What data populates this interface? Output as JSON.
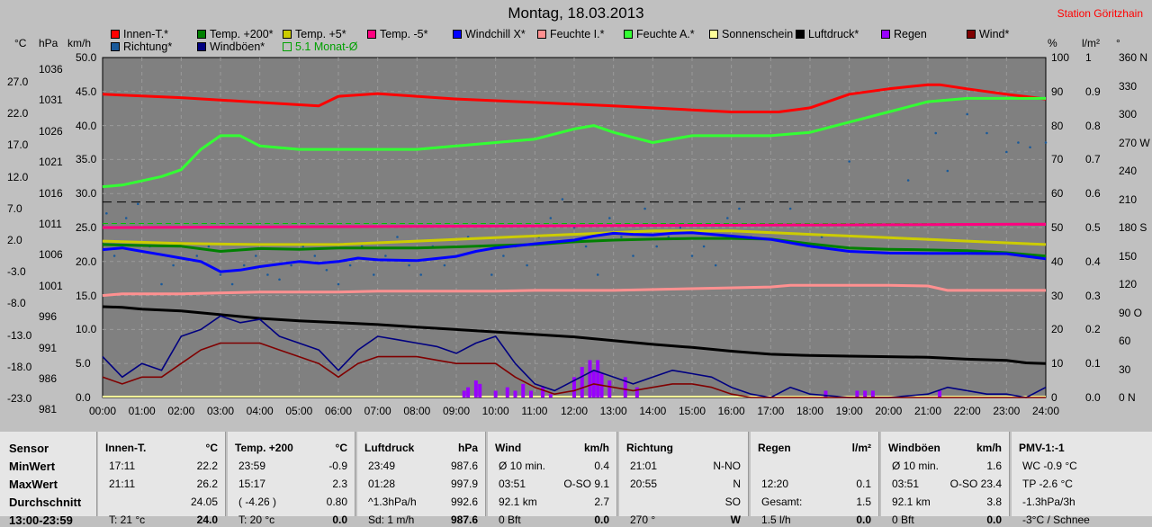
{
  "title": "Montag, 18.03.2013",
  "station": "Station Göritzhain",
  "legend": [
    {
      "label": "Innen-T.*",
      "color": "#ff0000"
    },
    {
      "label": "Temp. +200*",
      "color": "#008000"
    },
    {
      "label": "Temp. +5*",
      "color": "#cccc00"
    },
    {
      "label": "Temp. -5*",
      "color": "#ff0080"
    },
    {
      "label": "Windchill X*",
      "color": "#0000ff"
    },
    {
      "label": "Feuchte I.*",
      "color": "#ff9090"
    },
    {
      "label": "Feuchte A.*",
      "color": "#33ff33"
    },
    {
      "label": "Sonnenschein",
      "color": "#ffff99"
    },
    {
      "label": "Luftdruck*",
      "color": "#000000"
    },
    {
      "label": "Regen",
      "color": "#9900ff"
    },
    {
      "label": "Wind*",
      "color": "#800000"
    },
    {
      "label": "Richtung*",
      "color": "#1a5a9a"
    },
    {
      "label": "Windböen*",
      "color": "#000080"
    },
    {
      "label": "5.1 Monat-Ø",
      "color": "#00c000"
    }
  ],
  "units": {
    "temp": "°C",
    "hpa": "hPa",
    "kmh": "km/h",
    "pct": "%",
    "rain": "l/m²",
    "deg": "°"
  },
  "axes": {
    "temp_ticks": [
      "27.0",
      "22.0",
      "17.0",
      "12.0",
      "7.0",
      "2.0",
      "-3.0",
      "-8.0",
      "-13.0",
      "-18.0",
      "-23.0"
    ],
    "hpa_ticks": [
      "1036",
      "1031",
      "1026",
      "1021",
      "1016",
      "1011",
      "1006",
      "1001",
      "996",
      "991",
      "986",
      "981"
    ],
    "kmh_ticks": [
      "50.0",
      "45.0",
      "40.0",
      "35.0",
      "30.0",
      "25.0",
      "20.0",
      "15.0",
      "10.0",
      "5.0",
      "0.0"
    ],
    "pct_ticks": [
      "100",
      "90",
      "80",
      "70",
      "60",
      "50",
      "40",
      "30",
      "20",
      "10",
      "0"
    ],
    "rain_ticks": [
      "1",
      "0.9",
      "0.8",
      "0.7",
      "0.6",
      "0.5",
      "0.4",
      "0.3",
      "0.2",
      "0.1",
      "0.0"
    ],
    "dir_ticks": [
      "360 N",
      "330",
      "300",
      "270 W",
      "240",
      "210",
      "180 S",
      "150",
      "120",
      "90 O",
      "60",
      "30",
      "0 N"
    ],
    "time_ticks": [
      "00:00",
      "01:00",
      "02:00",
      "03:00",
      "04:00",
      "05:00",
      "06:00",
      "07:00",
      "08:00",
      "09:00",
      "10:00",
      "11:00",
      "12:00",
      "13:00",
      "14:00",
      "15:00",
      "16:00",
      "17:00",
      "18:00",
      "19:00",
      "20:00",
      "21:00",
      "22:00",
      "23:00",
      "24:00"
    ]
  },
  "chart_data": {
    "type": "line",
    "x_unit": "hours",
    "xlim": [
      0,
      24
    ],
    "series": [
      {
        "name": "Innen-T.*",
        "axis": "kmh",
        "color": "#ff0000",
        "x": [
          0,
          2,
          4,
          5.5,
          6,
          7,
          8,
          9,
          11,
          13,
          15,
          16,
          17,
          17.2,
          18,
          19,
          20,
          21,
          21.3,
          22,
          23,
          24
        ],
        "values": [
          44.6,
          44.1,
          43.4,
          42.9,
          44.3,
          44.7,
          44.3,
          43.9,
          43.4,
          42.9,
          42.3,
          42.0,
          42.0,
          42.0,
          42.6,
          44.6,
          45.4,
          46.0,
          46.0,
          45.4,
          44.6,
          43.9
        ]
      },
      {
        "name": "Feuchte A.*",
        "axis": "pct",
        "color": "#33ff33",
        "x": [
          0,
          0.5,
          1.5,
          2,
          2.5,
          3,
          3.5,
          4,
          5,
          6,
          7,
          8,
          9,
          10,
          11,
          12,
          12.5,
          13,
          14,
          15,
          16,
          17,
          18,
          19,
          20,
          21,
          22,
          23,
          24
        ],
        "values": [
          62,
          62.5,
          65,
          67,
          73,
          77,
          77,
          74,
          73,
          73,
          73,
          73,
          74,
          75,
          76,
          79,
          80,
          78,
          75,
          77,
          77,
          77,
          78,
          81,
          84,
          87,
          88,
          88,
          88
        ]
      },
      {
        "name": "Temp. -5*",
        "axis": "kmh",
        "color": "#ff0080",
        "x": [
          0,
          24
        ],
        "values": [
          25.0,
          25.5
        ]
      },
      {
        "name": "Temp. +5*",
        "axis": "pct",
        "color": "#cccc00",
        "x": [
          0,
          2,
          4,
          6,
          8,
          10,
          12,
          14,
          16,
          18,
          20,
          22,
          24
        ],
        "values": [
          46,
          45.3,
          45,
          45,
          46,
          47,
          48,
          49,
          49,
          48,
          47,
          46,
          45
        ]
      },
      {
        "name": "Temp. +200*",
        "axis": "pct",
        "color": "#008000",
        "x": [
          0,
          1,
          2,
          3,
          4,
          5,
          6,
          7,
          8,
          9,
          10,
          11,
          12,
          13,
          14,
          15,
          16,
          17,
          18,
          19,
          20,
          21,
          22,
          23,
          24
        ],
        "values": [
          45,
          44.7,
          44.5,
          43,
          43.8,
          43.6,
          44,
          44,
          44,
          44.3,
          44.7,
          45,
          45.8,
          46.3,
          46.6,
          46.8,
          46.8,
          46.6,
          45.2,
          44,
          43.6,
          43.4,
          43.2,
          42.6,
          41.6
        ]
      },
      {
        "name": "Windchill X*",
        "axis": "pct",
        "color": "#0000ff",
        "x": [
          0,
          0.5,
          1,
          1.5,
          2,
          2.5,
          3,
          3.5,
          4,
          5,
          5.5,
          6,
          6.5,
          7,
          8,
          9,
          9.5,
          10,
          11,
          12,
          12.5,
          13,
          13.5,
          14,
          14.5,
          15,
          15.5,
          16,
          17,
          18,
          19,
          20,
          21,
          22,
          23,
          24
        ],
        "values": [
          43.5,
          44,
          43,
          42,
          41,
          40,
          37,
          37.5,
          38.5,
          40,
          39.5,
          40,
          41,
          40.5,
          40.3,
          41.5,
          43,
          44,
          45.2,
          46.3,
          47.5,
          48.3,
          48,
          47.8,
          48.3,
          48.5,
          48,
          47.5,
          46.5,
          44.5,
          43,
          42.5,
          42.4,
          42.4,
          42.3,
          40.8
        ]
      },
      {
        "name": "Feuchte I.*",
        "axis": "pct",
        "color": "#ff9090",
        "x": [
          0,
          0.5,
          1,
          2,
          4,
          6,
          7,
          8,
          9,
          10,
          11,
          12,
          13,
          15,
          17,
          17.5,
          20,
          21,
          21.5,
          22,
          24
        ],
        "values": [
          30,
          30.5,
          30.5,
          30.5,
          31,
          31,
          31.3,
          31.3,
          31.3,
          31.3,
          31.5,
          31.5,
          31.5,
          32,
          32.5,
          33,
          33,
          32.8,
          31.5,
          31.5,
          31.5
        ]
      },
      {
        "name": "Luftdruck*",
        "axis": "hpa",
        "color": "#000000",
        "x": [
          0,
          0.5,
          1,
          2,
          3,
          4,
          5,
          6,
          7,
          8,
          9,
          10,
          11,
          12,
          13,
          14,
          15,
          16,
          17,
          18,
          19,
          20,
          21,
          22,
          23,
          23.5,
          24
        ],
        "values": [
          995.7,
          995.6,
          995.3,
          995,
          994.4,
          993.8,
          993.4,
          993.1,
          992.8,
          992.4,
          992,
          991.6,
          991.2,
          990.8,
          990.2,
          989.6,
          989.1,
          988.5,
          988,
          987.8,
          987.7,
          987.6,
          987.5,
          987.2,
          987,
          986.6,
          986.5
        ]
      },
      {
        "name": "Windböen*",
        "axis": "kmh",
        "color": "#000080",
        "x": [
          0,
          0.5,
          1,
          1.5,
          2,
          2.5,
          3,
          3.5,
          4,
          4.5,
          5,
          5.5,
          6,
          6.5,
          7,
          7.5,
          8,
          8.5,
          9,
          9.5,
          10,
          10.5,
          11,
          11.5,
          12,
          12.5,
          13,
          13.5,
          14,
          14.5,
          15,
          15.5,
          16,
          16.5,
          17,
          17.5,
          18,
          19,
          20,
          21,
          21.5,
          22,
          22.5,
          23,
          23.5,
          24
        ],
        "values": [
          6,
          3,
          5,
          4,
          9,
          10,
          12,
          11,
          11.5,
          9,
          8,
          7,
          4,
          7,
          9,
          8.5,
          8,
          7.5,
          6.5,
          8,
          9,
          5,
          2,
          1,
          2.5,
          4,
          3,
          2,
          3,
          4,
          3.5,
          3,
          1.5,
          0.5,
          0,
          1.5,
          0.5,
          0,
          0,
          0.5,
          1.5,
          1,
          0.5,
          0.5,
          0,
          1.5
        ]
      },
      {
        "name": "Wind*",
        "axis": "kmh",
        "color": "#800000",
        "x": [
          0,
          0.5,
          1,
          1.5,
          2,
          2.5,
          3,
          3.5,
          4,
          4.5,
          5,
          5.5,
          6,
          6.5,
          7,
          7.5,
          8,
          8.5,
          9,
          9.5,
          10,
          10.5,
          11,
          11.5,
          12,
          12.5,
          13,
          13.5,
          14,
          14.5,
          15,
          15.5,
          16,
          16.5,
          17,
          24
        ],
        "values": [
          3,
          2,
          3,
          3,
          5,
          7,
          8,
          8,
          8,
          7,
          6,
          5,
          3,
          5,
          6,
          6,
          6,
          5.5,
          5,
          5,
          5,
          3,
          1.5,
          0.5,
          1,
          2,
          1.5,
          1,
          1.5,
          2,
          2,
          1.5,
          0.5,
          0,
          0,
          0
        ]
      }
    ],
    "regen": {
      "axis": "rain",
      "x": [
        9.2,
        9.3,
        9.5,
        9.6,
        10,
        10.3,
        10.5,
        10.7,
        10.9,
        11.2,
        11.4,
        12,
        12.2,
        12.4,
        12.5,
        12.6,
        12.7,
        12.9,
        13.3,
        13.6,
        18.4,
        19.2,
        19.4,
        19.6,
        21.3
      ],
      "values": [
        0.02,
        0.03,
        0.05,
        0.04,
        0.02,
        0.03,
        0.02,
        0.04,
        0.02,
        0.03,
        0.01,
        0.06,
        0.09,
        0.11,
        0.08,
        0.11,
        0.07,
        0.05,
        0.06,
        0.03,
        0.02,
        0.02,
        0.02,
        0.02,
        0.02
      ]
    },
    "richtung": {
      "axis": "dir",
      "x": [
        0.1,
        0.3,
        0.6,
        0.9,
        1.2,
        1.5,
        1.8,
        2.1,
        2.4,
        2.7,
        3.0,
        3.3,
        3.6,
        3.9,
        4.2,
        4.5,
        4.8,
        5.1,
        5.4,
        5.7,
        6.0,
        6.3,
        6.6,
        6.9,
        7.2,
        7.5,
        7.8,
        8.1,
        8.4,
        8.7,
        9.0,
        9.3,
        9.6,
        9.9,
        10.2,
        10.5,
        10.8,
        11.1,
        11.4,
        11.7,
        12.0,
        12.3,
        12.6,
        12.9,
        13.2,
        13.5,
        13.8,
        14.1,
        14.4,
        14.7,
        15.0,
        15.3,
        15.6,
        15.9,
        16.2,
        16.5,
        17.5,
        18.3,
        19.0,
        20.5,
        21.2,
        21.5,
        22.0,
        22.5,
        23.0,
        23.3,
        23.6,
        24.0
      ],
      "values": [
        195,
        150,
        190,
        205,
        160,
        120,
        140,
        110,
        150,
        160,
        130,
        120,
        140,
        150,
        130,
        125,
        140,
        160,
        150,
        135,
        120,
        140,
        160,
        130,
        150,
        170,
        140,
        130,
        160,
        140,
        150,
        170,
        160,
        130,
        150,
        160,
        140,
        170,
        190,
        210,
        180,
        160,
        130,
        190,
        170,
        150,
        200,
        160,
        170,
        180,
        150,
        160,
        140,
        190,
        200,
        170,
        200,
        170,
        250,
        230,
        280,
        240,
        300,
        280,
        260,
        270,
        265,
        270
      ]
    },
    "monat_avg_pct": 51.2,
    "dashed_ref_pct": 57.5
  },
  "panel": {
    "rows": [
      "Sensor",
      "MinWert",
      "MaxWert",
      "Durchschnitt",
      "13:00-23:59"
    ],
    "blocks": [
      {
        "head": "Innen-T.",
        "unit": "°C",
        "r1": [
          "17:11",
          "22.2"
        ],
        "r2": [
          "21:11",
          "26.2"
        ],
        "r3": [
          "",
          "24.05"
        ],
        "r4": [
          "T: 21 °c",
          "24.0"
        ]
      },
      {
        "head": "Temp. +200",
        "unit": "°C",
        "r1": [
          "23:59",
          "-0.9"
        ],
        "r2": [
          "15:17",
          "2.3"
        ],
        "r3": [
          "( -4.26 )",
          "0.80"
        ],
        "r4": [
          "T: 20 °c",
          "0.0"
        ]
      },
      {
        "head": "Luftdruck",
        "unit": "hPa",
        "r1": [
          "23:49",
          "987.6"
        ],
        "r2": [
          "01:28",
          "997.9"
        ],
        "r3": [
          "^1.3hPa/h",
          "992.6"
        ],
        "r4": [
          "Sd: 1 m/h",
          "987.6"
        ]
      },
      {
        "head": "Wind",
        "unit": "km/h",
        "r1": [
          "Ø 10 min.",
          "0.4"
        ],
        "r2": [
          "03:51",
          "O-SO 9.1"
        ],
        "r3": [
          "92.1 km",
          "2.7"
        ],
        "r4": [
          "0 Bft",
          "0.0"
        ]
      },
      {
        "head": "Richtung",
        "unit": "",
        "r1": [
          "21:01",
          "N-NO"
        ],
        "r2": [
          "20:55",
          "N"
        ],
        "r3": [
          "",
          "SO"
        ],
        "r4": [
          "270 °",
          "W"
        ]
      },
      {
        "head": "Regen",
        "unit": "l/m²",
        "r1": [
          "",
          ""
        ],
        "r2": [
          "12:20",
          "0.1"
        ],
        "r3": [
          "Gesamt:",
          "1.5"
        ],
        "r4": [
          "1.5 l/h",
          "0.0"
        ]
      },
      {
        "head": "Windböen",
        "unit": "km/h",
        "r1": [
          "Ø 10 min.",
          "1.6"
        ],
        "r2": [
          "03:51",
          "O-SO 23.4"
        ],
        "r3": [
          "92.1 km",
          "3.8"
        ],
        "r4": [
          "0 Bft",
          "0.0"
        ]
      },
      {
        "head": "PMV-1:-1",
        "unit": "",
        "r1": [
          "WC -0.9 °C",
          ""
        ],
        "r2": [
          "TP -2.6 °C",
          ""
        ],
        "r3": [
          "-1.3hPa/3h",
          ""
        ],
        "r4": [
          "-3°C / Schnee",
          ""
        ]
      }
    ]
  }
}
